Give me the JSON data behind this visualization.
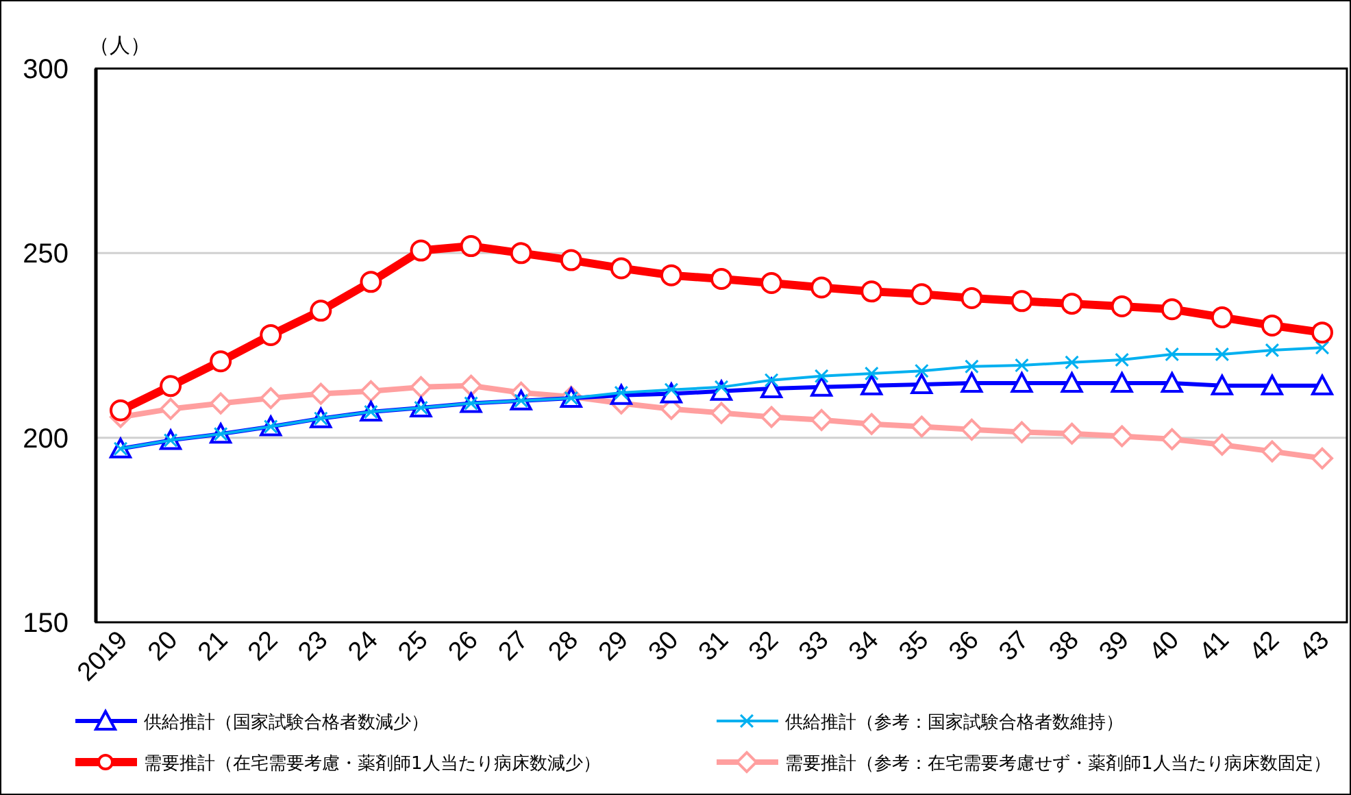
{
  "chart_data": {
    "type": "line",
    "ylabel": "（人）",
    "categories": [
      "2019",
      "20",
      "21",
      "22",
      "23",
      "24",
      "25",
      "26",
      "27",
      "28",
      "29",
      "30",
      "31",
      "32",
      "33",
      "34",
      "35",
      "36",
      "37",
      "38",
      "39",
      "40",
      "41",
      "42",
      "43"
    ],
    "ylim": [
      150,
      300
    ],
    "yticks": [
      150,
      200,
      250,
      300
    ],
    "grid": "y",
    "legend": "bottom",
    "line_style": "solid",
    "series": [
      {
        "name": "供給推計（国家試験合格者数減少）",
        "color": "#0000ff",
        "marker": "triangle",
        "values": [
          197,
          199.3,
          201,
          203,
          205.2,
          207,
          208.1,
          209.3,
          210,
          210.7,
          211.5,
          211.9,
          212.6,
          213.3,
          213.7,
          214.1,
          214.4,
          214.8,
          214.8,
          214.8,
          214.8,
          214.8,
          214.1,
          214.1,
          214.1
        ]
      },
      {
        "name": "供給推計（参考：国家試験合格者数維持）",
        "color": "#00b0f0",
        "marker": "cross",
        "values": [
          197,
          199.3,
          201,
          203,
          205.2,
          207,
          208.1,
          209.3,
          210,
          210.7,
          212.2,
          213,
          213.7,
          215.6,
          216.7,
          217.4,
          218.1,
          219.3,
          219.6,
          220.4,
          221.1,
          222.6,
          222.6,
          223.7,
          224.4
        ]
      },
      {
        "name": "需要推計（在宅需要考慮・薬剤師1人当たり病床数減少）",
        "color": "#ff0000",
        "marker": "circle",
        "values": [
          207.4,
          214,
          220.7,
          227.8,
          234.4,
          242.2,
          250.7,
          251.9,
          250,
          248.1,
          245.9,
          244,
          243,
          241.9,
          240.7,
          239.6,
          238.9,
          237.8,
          237,
          236.3,
          235.6,
          234.8,
          232.6,
          230.4,
          228.5
        ]
      },
      {
        "name": "需要推計（参考：在宅需要考慮せず・薬剤師1人当たり病床数固定）",
        "color": "#ff9f9f",
        "marker": "diamond",
        "values": [
          205.6,
          207.8,
          209.3,
          210.7,
          211.9,
          212.6,
          213.7,
          214.1,
          212.2,
          211.1,
          209.3,
          207.8,
          206.7,
          205.6,
          204.8,
          203.7,
          203,
          202.2,
          201.5,
          201.1,
          200.4,
          199.6,
          198.1,
          196.3,
          194.4
        ]
      }
    ]
  }
}
